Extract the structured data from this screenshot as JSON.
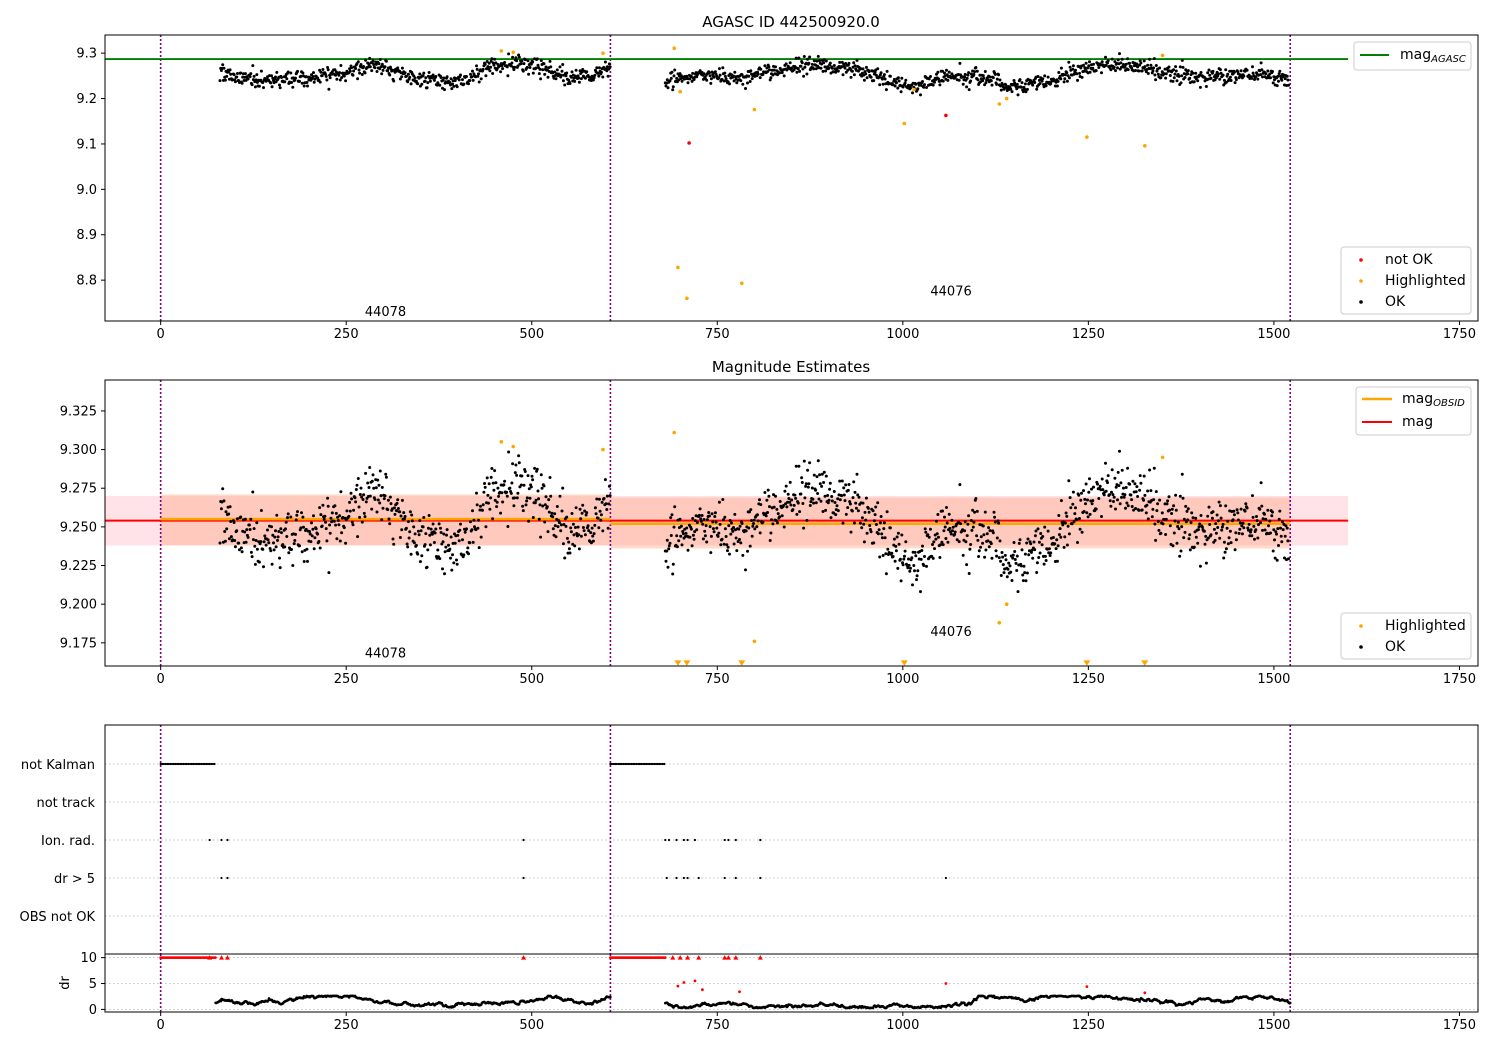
{
  "colors": {
    "ok": "#000000",
    "not_ok": "#ff0000",
    "highlighted": "#ffa500",
    "agasc_line": "#008000",
    "obsid_line": "#ffa500",
    "mag_line": "#ff0000",
    "obs_boundary": "#800080"
  },
  "chart_data": [
    {
      "type": "scatter",
      "title": "AGASC ID 442500920.0",
      "xlim": [
        -75,
        1775
      ],
      "ylim": [
        8.71,
        9.34
      ],
      "xticks": [
        0,
        250,
        500,
        750,
        1000,
        1250,
        1500,
        1750
      ],
      "yticks": [
        8.8,
        8.9,
        9.0,
        9.1,
        9.2,
        9.3
      ],
      "ytick_labels": [
        "8.8",
        "8.9",
        "9.0",
        "9.1",
        "9.2",
        "9.3"
      ],
      "obs_boundaries": [
        0,
        606,
        1522
      ],
      "obsid_labels": [
        {
          "text": "44078",
          "x": 303,
          "y": 8.73
        },
        {
          "text": "44076",
          "x": 1065,
          "y": 8.775
        }
      ],
      "reference_lines": [
        {
          "name": "mag_AGASC",
          "name_main": "mag",
          "name_sub": "AGASC",
          "y": 9.287,
          "x": [
            -75,
            1600
          ],
          "color": "#008000"
        }
      ],
      "legend_lines_title": [
        {
          "main": "mag",
          "sub": "AGASC"
        }
      ],
      "legend_points": [
        "not OK",
        "Highlighted",
        "OK"
      ],
      "series": [
        {
          "name": "OK",
          "segments": [
            {
              "x": [
                80,
                606
              ],
              "keys": [
                [
                  80,
                  9.255
                ],
                [
                  110,
                  9.245
                ],
                [
                  150,
                  9.24
                ],
                [
                  200,
                  9.245
                ],
                [
                  250,
                  9.255
                ],
                [
                  290,
                  9.275
                ],
                [
                  330,
                  9.25
                ],
                [
                  370,
                  9.24
                ],
                [
                  410,
                  9.235
                ],
                [
                  440,
                  9.27
                ],
                [
                  480,
                  9.28
                ],
                [
                  520,
                  9.265
                ],
                [
                  550,
                  9.245
                ],
                [
                  580,
                  9.25
                ],
                [
                  606,
                  9.275
                ]
              ]
            },
            {
              "x": [
                680,
                1520
              ],
              "keys": [
                [
                  680,
                  9.235
                ],
                [
                  720,
                  9.25
                ],
                [
                  780,
                  9.245
                ],
                [
                  820,
                  9.26
                ],
                [
                  880,
                  9.275
                ],
                [
                  930,
                  9.265
                ],
                [
                  970,
                  9.245
                ],
                [
                  1010,
                  9.225
                ],
                [
                  1060,
                  9.25
                ],
                [
                  1120,
                  9.245
                ],
                [
                  1150,
                  9.225
                ],
                [
                  1200,
                  9.24
                ],
                [
                  1250,
                  9.27
                ],
                [
                  1290,
                  9.275
                ],
                [
                  1330,
                  9.265
                ],
                [
                  1400,
                  9.245
                ],
                [
                  1460,
                  9.255
                ],
                [
                  1520,
                  9.245
                ]
              ]
            }
          ]
        },
        {
          "name": "Highlighted",
          "points": [
            [
              459,
              9.305
            ],
            [
              475,
              9.302
            ],
            [
              596,
              9.3
            ],
            [
              692,
              9.311
            ],
            [
              697,
              8.828
            ],
            [
              709,
              8.76
            ],
            [
              783,
              8.793
            ],
            [
              800,
              9.176
            ],
            [
              1002,
              9.145
            ],
            [
              1130,
              9.188
            ],
            [
              1140,
              9.2
            ],
            [
              1248,
              9.115
            ],
            [
              1326,
              9.096
            ],
            [
              1350,
              9.295
            ],
            [
              700,
              9.215
            ],
            [
              1015,
              9.22
            ]
          ]
        },
        {
          "name": "not OK",
          "points": [
            [
              712,
              9.102
            ],
            [
              1058,
              9.163
            ]
          ]
        }
      ]
    },
    {
      "type": "scatter",
      "title": "Magnitude Estimates",
      "xlim": [
        -75,
        1775
      ],
      "ylim": [
        9.16,
        9.345
      ],
      "xticks": [
        0,
        250,
        500,
        750,
        1000,
        1250,
        1500,
        1750
      ],
      "yticks": [
        9.175,
        9.2,
        9.225,
        9.25,
        9.275,
        9.3,
        9.325
      ],
      "ytick_labels": [
        "9.175",
        "9.200",
        "9.225",
        "9.250",
        "9.275",
        "9.300",
        "9.325"
      ],
      "obs_boundaries": [
        0,
        606,
        1522
      ],
      "obsid_labels": [
        {
          "text": "44078",
          "x": 303,
          "y": 9.168
        },
        {
          "text": "44076",
          "x": 1065,
          "y": 9.182
        }
      ],
      "bands": [
        {
          "color": "#ffc0cb",
          "opacity": 0.45,
          "x": [
            -75,
            1600
          ],
          "y": [
            9.238,
            9.27
          ]
        },
        {
          "color": "#ffa07a",
          "opacity": 0.38,
          "x": [
            0,
            606
          ],
          "y": [
            9.238,
            9.271
          ]
        },
        {
          "color": "#ffa07a",
          "opacity": 0.38,
          "x": [
            606,
            1522
          ],
          "y": [
            9.236,
            9.269
          ]
        }
      ],
      "reference_lines": [
        {
          "name": "mag",
          "y": 9.254,
          "x": [
            -75,
            1600
          ],
          "color": "#ff0000",
          "width": 2
        },
        {
          "name": "mag_OBSID",
          "y": 9.255,
          "x": [
            0,
            606
          ],
          "color": "#ffa500",
          "width": 2.5
        },
        {
          "name": "mag_OBSID",
          "y": 9.252,
          "x": [
            606,
            1522
          ],
          "color": "#ffa500",
          "width": 2.5
        }
      ],
      "legend_lines": [
        {
          "main": "mag",
          "sub": "OBSID",
          "color": "#ffa500"
        },
        {
          "main": "mag",
          "sub": "",
          "color": "#ff0000"
        }
      ],
      "legend_points": [
        "Highlighted",
        "OK"
      ],
      "series": [
        {
          "name": "OK",
          "segments": [
            {
              "x": [
                80,
                606
              ],
              "keys": [
                [
                  80,
                  9.255
                ],
                [
                  110,
                  9.245
                ],
                [
                  150,
                  9.24
                ],
                [
                  200,
                  9.245
                ],
                [
                  250,
                  9.255
                ],
                [
                  290,
                  9.275
                ],
                [
                  330,
                  9.25
                ],
                [
                  370,
                  9.24
                ],
                [
                  410,
                  9.235
                ],
                [
                  440,
                  9.27
                ],
                [
                  480,
                  9.28
                ],
                [
                  520,
                  9.265
                ],
                [
                  550,
                  9.245
                ],
                [
                  580,
                  9.25
                ],
                [
                  606,
                  9.275
                ]
              ]
            },
            {
              "x": [
                680,
                1520
              ],
              "keys": [
                [
                  680,
                  9.235
                ],
                [
                  720,
                  9.25
                ],
                [
                  780,
                  9.245
                ],
                [
                  820,
                  9.26
                ],
                [
                  880,
                  9.275
                ],
                [
                  930,
                  9.265
                ],
                [
                  970,
                  9.245
                ],
                [
                  1010,
                  9.225
                ],
                [
                  1060,
                  9.25
                ],
                [
                  1120,
                  9.245
                ],
                [
                  1150,
                  9.225
                ],
                [
                  1200,
                  9.24
                ],
                [
                  1250,
                  9.27
                ],
                [
                  1290,
                  9.275
                ],
                [
                  1330,
                  9.265
                ],
                [
                  1400,
                  9.245
                ],
                [
                  1460,
                  9.255
                ],
                [
                  1520,
                  9.245
                ]
              ]
            }
          ]
        },
        {
          "name": "Highlighted",
          "points": [
            [
              459,
              9.305
            ],
            [
              475,
              9.302
            ],
            [
              596,
              9.3
            ],
            [
              692,
              9.311
            ],
            [
              800,
              9.176
            ],
            [
              1130,
              9.188
            ],
            [
              1140,
              9.2
            ],
            [
              1350,
              9.295
            ]
          ]
        },
        {
          "name": "Highlighted (clipped below)",
          "points": [
            [
              697,
              9.162
            ],
            [
              709,
              9.162
            ],
            [
              783,
              9.162
            ],
            [
              1002,
              9.162
            ],
            [
              1248,
              9.162
            ],
            [
              1326,
              9.162
            ]
          ]
        }
      ]
    },
    {
      "type": "scatter",
      "title": "",
      "xlim": [
        -75,
        1775
      ],
      "categories": [
        "not Kalman",
        "not track",
        "Ion. rad.",
        "dr > 5",
        "OBS not OK"
      ],
      "obs_boundaries": [
        0,
        606,
        1522
      ],
      "flags": {
        "not Kalman": {
          "ranges": [
            [
              0,
              74
            ],
            [
              606,
              680
            ]
          ]
        },
        "not track": {
          "ranges": []
        },
        "Ion. rad.": {
          "points": [
            66,
            82,
            90,
            489,
            680,
            685,
            695,
            705,
            710,
            720,
            760,
            765,
            775,
            808
          ]
        },
        "dr > 5": {
          "points": [
            82,
            90,
            489,
            682,
            695,
            705,
            710,
            725,
            760,
            775,
            808,
            1058
          ]
        },
        "OBS not OK": {
          "points": []
        }
      }
    },
    {
      "type": "scatter",
      "title": "",
      "ylabel": "dr",
      "xlim": [
        -75,
        1775
      ],
      "ylim": [
        -0.5,
        10.7
      ],
      "xticks": [
        0,
        250,
        500,
        750,
        1000,
        1250,
        1500,
        1750
      ],
      "yticks": [
        0,
        5,
        10
      ],
      "ytick_labels": [
        "0",
        "5",
        "10"
      ],
      "obs_boundaries": [
        0,
        606,
        1522
      ],
      "series": [
        {
          "name": "dr OK",
          "segments": [
            {
              "x": [
                74,
                606
              ]
            },
            {
              "x": [
                680,
                1522
              ]
            }
          ],
          "level": 1.2
        },
        {
          "name": "dr clipped",
          "ranges": [
            [
              0,
              74
            ],
            [
              606,
              680
            ]
          ],
          "points": [
            66,
            82,
            90,
            489,
            690,
            700,
            710,
            725,
            760,
            765,
            775,
            808
          ],
          "y": 10
        },
        {
          "name": "dr not OK",
          "points": [
            [
              697,
              4.5
            ],
            [
              705,
              5.2
            ],
            [
              720,
              5.5
            ],
            [
              730,
              3.8
            ],
            [
              780,
              3.4
            ],
            [
              1058,
              5.0
            ],
            [
              1248,
              4.4
            ],
            [
              1326,
              3.2
            ]
          ]
        }
      ]
    }
  ]
}
